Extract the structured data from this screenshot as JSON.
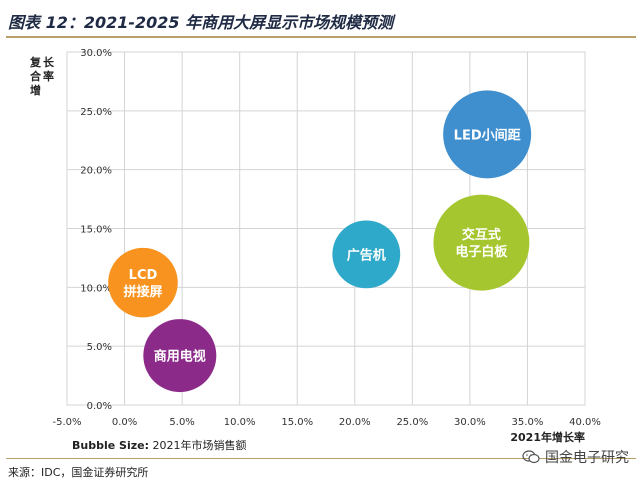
{
  "title": "图表 12：2021-2025 年商用大屏显示市场规模预测",
  "bubble_size_label": "Bubble Size:",
  "bubble_size_value": "2021年市场销售额",
  "source": "来源：IDC，国金证券研究所",
  "watermark": "国金电子研究",
  "watermark_icon": "wechat-icon",
  "chart_data": {
    "type": "bubble",
    "xlabel": "2021年增长率",
    "ylabel": "复合增长率",
    "xlim": [
      -5,
      40
    ],
    "ylim": [
      0,
      30
    ],
    "x_ticks": [
      "-5.0%",
      "0.0%",
      "5.0%",
      "10.0%",
      "15.0%",
      "20.0%",
      "25.0%",
      "30.0%",
      "35.0%",
      "40.0%"
    ],
    "y_ticks": [
      "0.0%",
      "5.0%",
      "10.0%",
      "15.0%",
      "20.0%",
      "25.0%",
      "30.0%"
    ],
    "grid": true,
    "points": [
      {
        "label": [
          "LCD",
          "拼接屏"
        ],
        "x": 1.6,
        "y": 10.4,
        "size": 1.0,
        "color": "#f7931e"
      },
      {
        "label": [
          "商用电视"
        ],
        "x": 4.8,
        "y": 4.2,
        "size": 1.1,
        "color": "#8c2a8a"
      },
      {
        "label": [
          "广告机"
        ],
        "x": 21.0,
        "y": 12.8,
        "size": 0.95,
        "color": "#2fa9c9"
      },
      {
        "label": [
          "LED小间距"
        ],
        "x": 31.5,
        "y": 23.0,
        "size": 1.6,
        "color": "#3f8fcf"
      },
      {
        "label": [
          "交互式",
          "电子白板"
        ],
        "x": 31.0,
        "y": 13.8,
        "size": 1.9,
        "color": "#a6c62f"
      }
    ]
  }
}
